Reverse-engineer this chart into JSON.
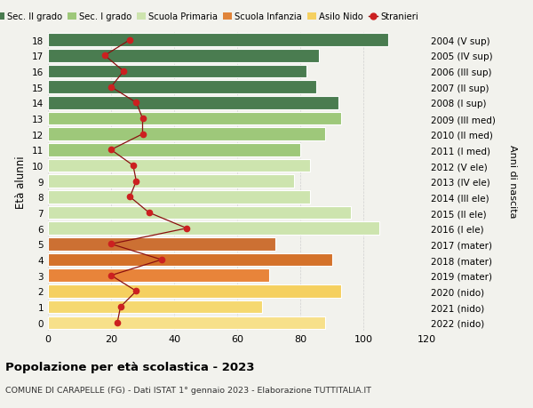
{
  "ages": [
    0,
    1,
    2,
    3,
    4,
    5,
    6,
    7,
    8,
    9,
    10,
    11,
    12,
    13,
    14,
    15,
    16,
    17,
    18
  ],
  "right_labels": [
    "2022 (nido)",
    "2021 (nido)",
    "2020 (nido)",
    "2019 (mater)",
    "2018 (mater)",
    "2017 (mater)",
    "2016 (I ele)",
    "2015 (II ele)",
    "2014 (III ele)",
    "2013 (IV ele)",
    "2012 (V ele)",
    "2011 (I med)",
    "2010 (II med)",
    "2009 (III med)",
    "2008 (I sup)",
    "2007 (II sup)",
    "2006 (III sup)",
    "2005 (IV sup)",
    "2004 (V sup)"
  ],
  "bar_values": [
    88,
    68,
    93,
    70,
    90,
    72,
    105,
    96,
    83,
    78,
    83,
    80,
    88,
    93,
    92,
    85,
    82,
    86,
    108
  ],
  "bar_colors": [
    "#f7e08a",
    "#f5d870",
    "#f5d060",
    "#e8843a",
    "#d4722a",
    "#cc7033",
    "#cde4ae",
    "#cde4ae",
    "#cde4ae",
    "#cde4ae",
    "#cde4ae",
    "#9ec87a",
    "#9ec87a",
    "#9ec87a",
    "#4a7c50",
    "#4a7c50",
    "#4a7c50",
    "#4a7c50",
    "#4a7c50"
  ],
  "stranieri_values": [
    22,
    23,
    28,
    20,
    36,
    20,
    44,
    32,
    26,
    28,
    27,
    20,
    30,
    30,
    28,
    20,
    24,
    18,
    26
  ],
  "xlim": [
    0,
    120
  ],
  "ylabel": "Età alunni",
  "right_ylabel": "Anni di nascita",
  "title": "Popolazione per età scolastica - 2023",
  "subtitle": "COMUNE DI CARAPELLE (FG) - Dati ISTAT 1° gennaio 2023 - Elaborazione TUTTITALIA.IT",
  "legend_labels": [
    "Sec. II grado",
    "Sec. I grado",
    "Scuola Primaria",
    "Scuola Infanzia",
    "Asilo Nido",
    "Stranieri"
  ],
  "legend_colors": [
    "#4a7c50",
    "#9ec87a",
    "#cde4ae",
    "#e0843a",
    "#f5d060",
    "#cc2020"
  ],
  "bg_color": "#f2f2ed",
  "bar_edge_color": "white",
  "grid_color": "#d0d0d0",
  "stranieri_color": "#8b1010",
  "stranieri_marker_color": "#cc2020",
  "xticks": [
    0,
    20,
    40,
    60,
    80,
    100,
    120
  ]
}
